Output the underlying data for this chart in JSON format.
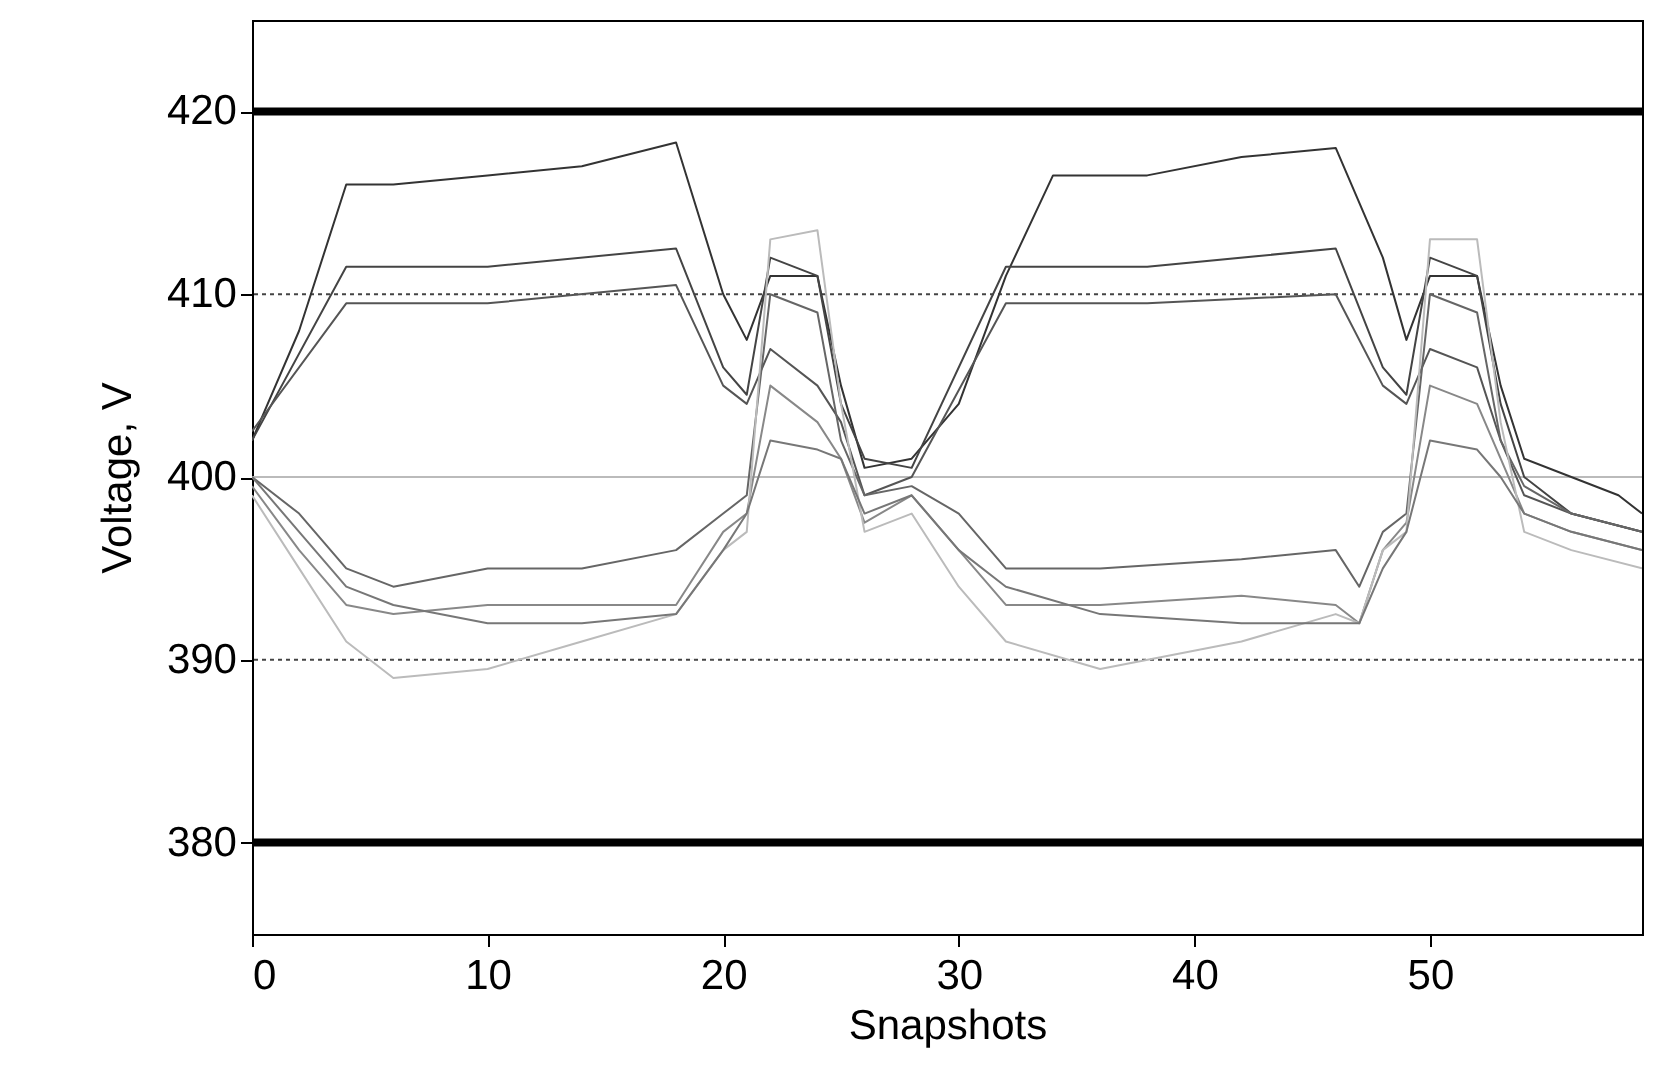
{
  "chart_data": {
    "type": "line",
    "xlabel": "Snapshots",
    "ylabel": "Voltage, V",
    "xlim": [
      0,
      59
    ],
    "ylim": [
      375,
      425
    ],
    "xticks": [
      0,
      10,
      20,
      30,
      40,
      50
    ],
    "yticks": [
      380,
      390,
      400,
      410,
      420
    ],
    "grid": false,
    "marker": "none",
    "line_style": "solid",
    "ref_lines": [
      {
        "axis": "y",
        "value": 420,
        "label": null,
        "color": "#000000",
        "line_style": "solid"
      },
      {
        "axis": "y",
        "value": 380,
        "label": null,
        "color": "#000000",
        "line_style": "solid"
      },
      {
        "axis": "y",
        "value": 410,
        "label": null,
        "color": "#444444",
        "line_style": "dotted"
      },
      {
        "axis": "y",
        "value": 390,
        "label": null,
        "color": "#444444",
        "line_style": "dotted"
      },
      {
        "axis": "y",
        "value": 400,
        "label": null,
        "color": "#bbbbbb",
        "line_style": "solid"
      }
    ],
    "series": [
      {
        "color": "#333333",
        "x": [
          0,
          2,
          4,
          6,
          10,
          14,
          18,
          20,
          21,
          22,
          24,
          25,
          26,
          28,
          30,
          32,
          34,
          38,
          42,
          46,
          48,
          49,
          50,
          52,
          53,
          54,
          56,
          58,
          59
        ],
        "values": [
          402,
          408,
          416,
          416,
          416.5,
          417,
          418.3,
          410,
          407.5,
          411,
          411,
          405,
          400.5,
          401,
          404,
          411,
          416.5,
          416.5,
          417.5,
          418,
          412,
          407.5,
          411,
          411,
          405,
          401,
          400,
          399,
          398
        ]
      },
      {
        "color": "#444444",
        "x": [
          0,
          4,
          10,
          18,
          20,
          21,
          22,
          24,
          25,
          26,
          28,
          32,
          38,
          46,
          48,
          49,
          50,
          52,
          53,
          54,
          56,
          59
        ],
        "values": [
          402,
          411.5,
          411.5,
          412.5,
          406,
          404.5,
          412,
          411,
          404,
          401,
          400.5,
          411.5,
          411.5,
          412.5,
          406,
          404.5,
          412,
          411,
          404,
          400,
          398,
          397
        ]
      },
      {
        "color": "#555555",
        "x": [
          0,
          4,
          10,
          18,
          20,
          21,
          22,
          24,
          25,
          26,
          28,
          32,
          38,
          46,
          48,
          49,
          50,
          52,
          53,
          54,
          56,
          59
        ],
        "values": [
          402.5,
          409.5,
          409.5,
          410.5,
          405,
          404,
          407,
          405,
          403,
          399,
          400,
          409.5,
          409.5,
          410,
          405,
          404,
          407,
          406,
          402,
          399,
          398,
          397
        ]
      },
      {
        "color": "#666666",
        "x": [
          0,
          2,
          4,
          6,
          10,
          14,
          18,
          20,
          21,
          22,
          24,
          25,
          26,
          28,
          30,
          32,
          36,
          42,
          46,
          47,
          48,
          49,
          50,
          52,
          53,
          54,
          56,
          59
        ],
        "values": [
          400,
          398,
          395,
          394,
          395,
          395,
          396,
          398,
          399,
          410,
          409,
          402,
          399,
          399.5,
          398,
          395,
          395,
          395.5,
          396,
          394,
          397,
          398,
          410,
          409,
          402,
          399.5,
          398,
          397
        ]
      },
      {
        "color": "#888888",
        "x": [
          0,
          2,
          4,
          6,
          10,
          14,
          18,
          20,
          21,
          22,
          24,
          25,
          26,
          28,
          30,
          32,
          36,
          42,
          46,
          47,
          48,
          49,
          50,
          52,
          53,
          54,
          56,
          59
        ],
        "values": [
          399.5,
          396,
          393,
          392.5,
          393,
          393,
          393,
          397,
          398,
          405,
          403,
          401,
          397.5,
          399,
          396,
          393,
          393,
          393.5,
          393,
          392,
          396,
          397.5,
          405,
          404,
          401,
          398,
          397,
          396
        ]
      },
      {
        "color": "#bbbbbb",
        "x": [
          0,
          2,
          4,
          6,
          10,
          14,
          18,
          20,
          21,
          22,
          24,
          25,
          26,
          28,
          30,
          32,
          36,
          42,
          46,
          47,
          48,
          49,
          50,
          52,
          53,
          54,
          56,
          59
        ],
        "values": [
          399,
          395,
          391,
          389,
          389.5,
          391,
          392.5,
          396,
          397,
          413,
          413.5,
          404,
          397,
          398,
          394,
          391,
          389.5,
          391,
          392.5,
          392,
          396,
          397,
          413,
          413,
          403,
          397,
          396,
          395
        ]
      },
      {
        "color": "#777777",
        "x": [
          0,
          2,
          4,
          6,
          10,
          14,
          18,
          20,
          21,
          22,
          24,
          25,
          26,
          28,
          30,
          32,
          36,
          42,
          46,
          47,
          48,
          49,
          50,
          52,
          53,
          54,
          56,
          59
        ],
        "values": [
          400,
          397,
          394,
          393,
          392,
          392,
          392.5,
          396,
          398,
          402,
          401.5,
          401,
          398,
          399,
          396,
          394,
          392.5,
          392,
          392,
          392,
          395,
          397,
          402,
          401.5,
          400,
          398,
          397,
          396
        ]
      }
    ]
  }
}
